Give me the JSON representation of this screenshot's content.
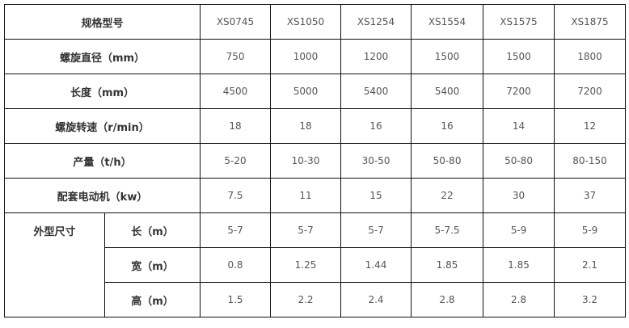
{
  "header": {
    "label": "规格型号",
    "models": [
      "XS0745",
      "XS1050",
      "XS1254",
      "XS1554",
      "XS1575",
      "XS1875"
    ]
  },
  "rows": [
    {
      "label": "螺旋直径（mm）",
      "values": [
        "750",
        "1000",
        "1200",
        "1500",
        "1500",
        "1800"
      ]
    },
    {
      "label": "长度（mm）",
      "values": [
        "4500",
        "5000",
        "5400",
        "5400",
        "7200",
        "7200"
      ]
    },
    {
      "label": "螺旋转速（r/min）",
      "values": [
        "18",
        "18",
        "16",
        "16",
        "14",
        "12"
      ]
    },
    {
      "label": "产量（t/h）",
      "values": [
        "5-20",
        "10-30",
        "30-50",
        "50-80",
        "50-80",
        "80-150"
      ]
    },
    {
      "label": "配套电动机（kw）",
      "values": [
        "7.5",
        "11",
        "15",
        "22",
        "30",
        "37"
      ]
    }
  ],
  "dimensions": {
    "label": "外型尺寸",
    "rows": [
      {
        "label": "长（m）",
        "values": [
          "5-7",
          "5-7",
          "5-7",
          "5-7.5",
          "5-9",
          "5-9"
        ]
      },
      {
        "label": "宽（m）",
        "values": [
          "0.8",
          "1.25",
          "1.44",
          "1.85",
          "1.85",
          "2.1"
        ]
      },
      {
        "label": "高（m）",
        "values": [
          "1.5",
          "2.2",
          "2.4",
          "2.8",
          "2.8",
          "3.2"
        ]
      }
    ]
  }
}
